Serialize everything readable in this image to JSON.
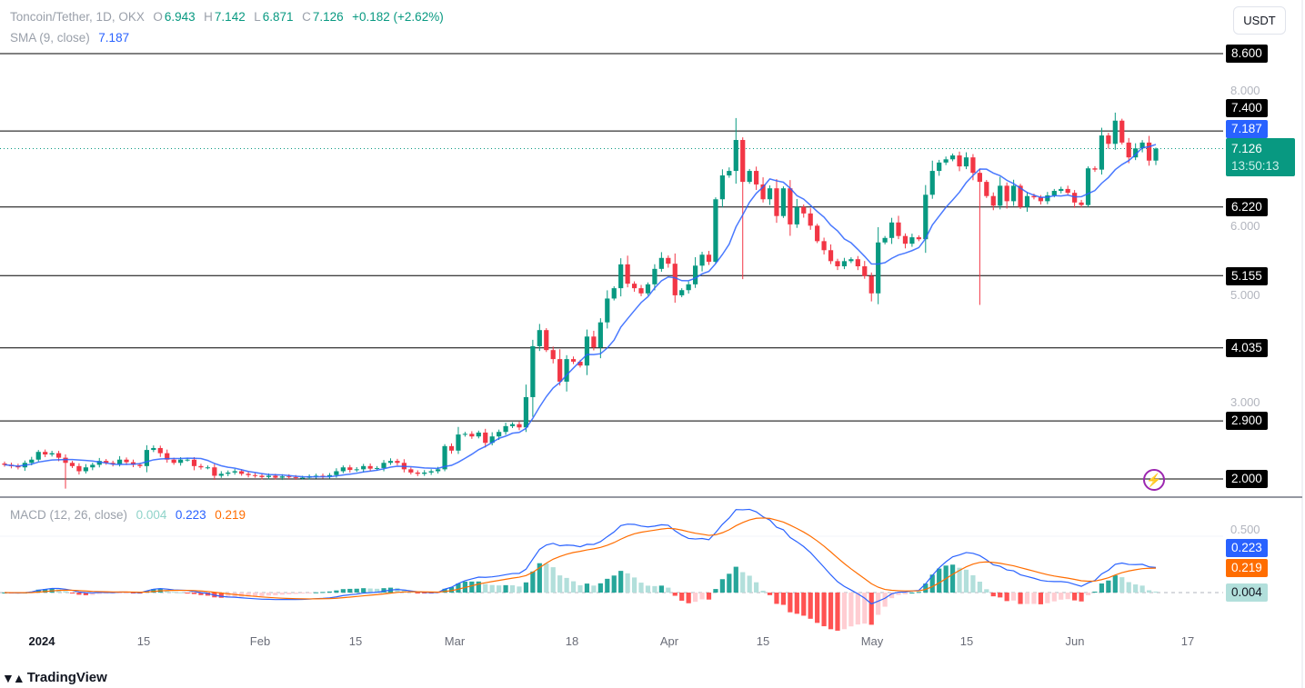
{
  "header": {
    "symbol": "Toncoin/Tether, 1D, OKX",
    "o_label": "O",
    "open": "6.943",
    "h_label": "H",
    "high": "7.142",
    "l_label": "L",
    "low": "6.871",
    "c_label": "C",
    "close": "7.126",
    "change": "+0.182 (+2.62%)",
    "sma_label": "SMA (9, close)",
    "sma_value": "7.187"
  },
  "currency_button": "USDT",
  "price_axis": {
    "ticks": [
      "8.000",
      "6.000",
      "5.000",
      "3.000"
    ],
    "level_labels": [
      "8.600",
      "7.400",
      "6.220",
      "5.155",
      "4.035",
      "2.900",
      "2.000"
    ],
    "sma_label": "7.187",
    "last_price": "7.126",
    "countdown": "13:50:13"
  },
  "macd": {
    "label": "MACD (12, 26, close)",
    "histogram": "0.004",
    "macd": "0.223",
    "signal": "0.219",
    "axis_tick": "0.500"
  },
  "time_axis": [
    "2024",
    "15",
    "Feb",
    "15",
    "Mar",
    "18",
    "Apr",
    "15",
    "May",
    "15",
    "Jun",
    "17"
  ],
  "branding": "TradingView",
  "colors": {
    "up": "#089981",
    "down": "#F23645",
    "sma": "#2962FF",
    "macd": "#2962FF",
    "signal": "#FF6D00",
    "level": "#000000"
  },
  "chart_data": {
    "type": "candlestick",
    "title": "Toncoin/Tether, 1D, OKX",
    "interval": "1D",
    "ylim": [
      2.0,
      8.6
    ],
    "levels": [
      8.6,
      7.4,
      6.22,
      5.155,
      4.035,
      2.9,
      2.0
    ],
    "x_range": [
      "2023-12-26",
      "2024-06-12"
    ],
    "close": [
      2.22,
      2.2,
      2.18,
      2.25,
      2.3,
      2.42,
      2.38,
      2.4,
      2.33,
      2.25,
      2.2,
      2.12,
      2.18,
      2.22,
      2.28,
      2.25,
      2.23,
      2.3,
      2.26,
      2.22,
      2.2,
      2.45,
      2.48,
      2.4,
      2.3,
      2.25,
      2.3,
      2.3,
      2.2,
      2.18,
      2.18,
      2.05,
      2.08,
      2.1,
      2.12,
      2.08,
      2.06,
      2.05,
      2.03,
      2.05,
      2.02,
      2.04,
      2.03,
      2.02,
      2.02,
      2.04,
      2.05,
      2.04,
      2.06,
      2.12,
      2.18,
      2.14,
      2.15,
      2.2,
      2.16,
      2.17,
      2.25,
      2.28,
      2.25,
      2.15,
      2.1,
      2.08,
      2.1,
      2.12,
      2.15,
      2.51,
      2.44,
      2.69,
      2.7,
      2.66,
      2.72,
      2.56,
      2.66,
      2.73,
      2.82,
      2.85,
      2.8,
      3.27,
      4.06,
      4.31,
      4.0,
      3.86,
      3.51,
      3.86,
      3.82,
      3.76,
      4.21,
      4.04,
      4.43,
      4.8,
      4.96,
      5.33,
      5.03,
      4.96,
      4.88,
      5.02,
      5.26,
      5.43,
      5.34,
      4.85,
      4.93,
      5.02,
      5.31,
      5.48,
      5.37,
      6.34,
      6.71,
      6.78,
      7.26,
      6.61,
      6.78,
      6.57,
      6.34,
      6.51,
      6.08,
      6.51,
      5.95,
      6.22,
      6.12,
      5.93,
      5.69,
      5.55,
      5.38,
      5.3,
      5.38,
      5.41,
      5.3,
      5.15,
      4.88,
      5.67,
      5.74,
      5.98,
      5.77,
      5.65,
      5.75,
      5.72,
      6.41,
      6.78,
      6.91,
      6.96,
      7.02,
      6.85,
      6.99,
      6.75,
      6.61,
      6.39,
      6.24,
      6.55,
      6.31,
      6.55,
      6.22,
      6.39,
      6.37,
      6.31,
      6.4,
      6.47,
      6.5,
      6.44,
      6.29,
      6.25,
      6.82,
      6.8,
      7.33,
      7.2,
      7.56,
      7.22,
      6.99,
      7.13,
      7.22,
      6.94,
      7.126
    ],
    "first_open": 2.24,
    "wick_overrides": [
      {
        "index": 9,
        "low": 1.85
      },
      {
        "index": 108,
        "high": 7.6
      },
      {
        "index": 109,
        "high": 7.3,
        "low": 5.1
      },
      {
        "index": 144,
        "low": 4.7
      },
      {
        "index": 162,
        "high": 7.45
      },
      {
        "index": 170,
        "high": 7.142,
        "low": 6.871
      }
    ],
    "indicators": {
      "sma_period": 9,
      "macd": [
        12,
        26,
        9
      ]
    },
    "macd_ylim": [
      -0.25,
      0.75
    ]
  }
}
